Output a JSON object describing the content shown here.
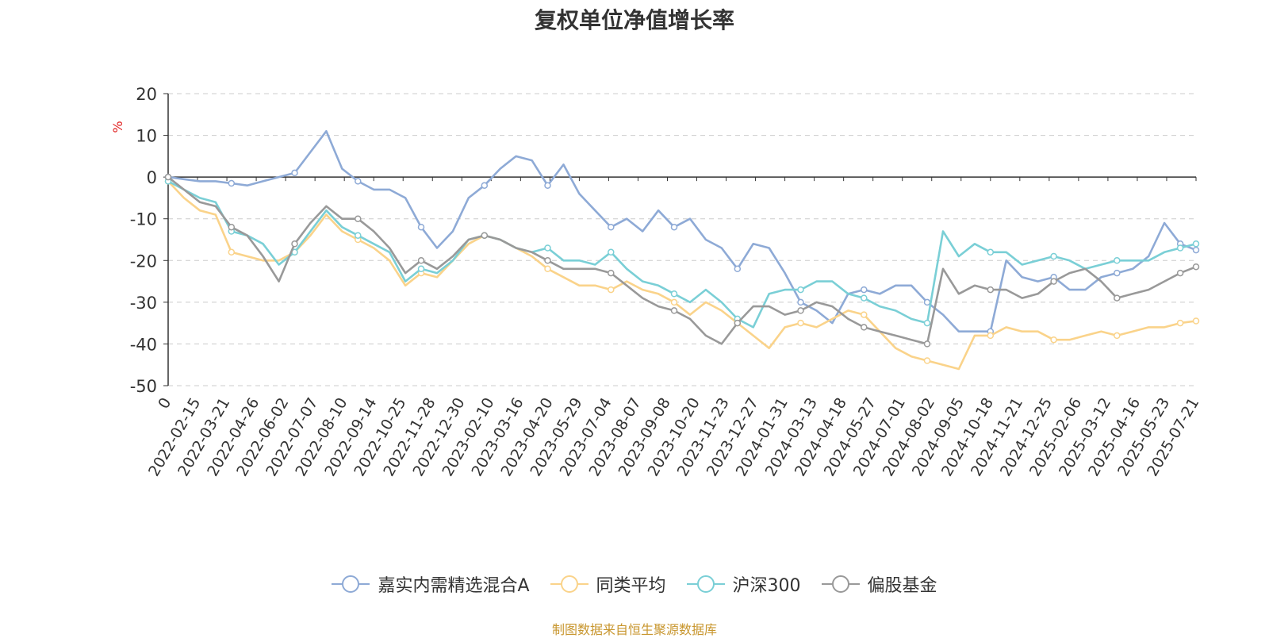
{
  "title": "复权单位净值增长率",
  "source_note": "制图数据来自恒生聚源数据库",
  "chart_data": {
    "type": "line",
    "title": "复权单位净值增长率",
    "ylabel": "%",
    "ylim": [
      -50,
      20
    ],
    "yticks": [
      20,
      10,
      0,
      -10,
      -20,
      -30,
      -40,
      -50
    ],
    "grid": true,
    "legend_position": "bottom",
    "x_tick_labels": [
      "0",
      "2022-02-15",
      "2022-03-21",
      "2022-04-26",
      "2022-06-02",
      "2022-07-07",
      "2022-08-10",
      "2022-09-14",
      "2022-10-25",
      "2022-11-28",
      "2022-12-30",
      "2023-02-10",
      "2023-03-16",
      "2023-04-20",
      "2023-05-29",
      "2023-07-04",
      "2023-08-07",
      "2023-09-08",
      "2023-10-20",
      "2023-11-23",
      "2023-12-27",
      "2024-01-31",
      "2024-03-13",
      "2024-04-18",
      "2024-05-27",
      "2024-07-01",
      "2024-08-02",
      "2024-09-05",
      "2024-10-18",
      "2024-11-21",
      "2024-12-25",
      "2025-02-06",
      "2025-03-12",
      "2025-04-16",
      "2025-05-23",
      "2025-07-21"
    ],
    "series": [
      {
        "name": "嘉实内需精选混合A",
        "color": "#8eaad6",
        "values": [
          0,
          -0.5,
          -1,
          -1,
          -1.5,
          -2,
          -1,
          0,
          1,
          6,
          11,
          2,
          -1,
          -3,
          -3,
          -5,
          -12,
          -17,
          -13,
          -5,
          -2,
          2,
          5,
          4,
          -2,
          3,
          -4,
          -8,
          -12,
          -10,
          -13,
          -8,
          -12,
          -10,
          -15,
          -17,
          -22,
          -16,
          -17,
          -23,
          -30,
          -32,
          -35,
          -28,
          -27,
          -28,
          -26,
          -26,
          -30,
          -33,
          -37,
          -37,
          -37,
          -20,
          -24,
          -25,
          -24,
          -27,
          -27,
          -24,
          -23,
          -22,
          -19,
          -11,
          -16,
          -17.5
        ]
      },
      {
        "name": "同类平均",
        "color": "#fad38a",
        "values": [
          -1,
          -5,
          -8,
          -9,
          -18,
          -19,
          -20,
          -20,
          -18,
          -14,
          -9,
          -13,
          -15,
          -17,
          -20,
          -26,
          -23,
          -24,
          -20,
          -16,
          -14,
          -15,
          -17,
          -19,
          -22,
          -24,
          -26,
          -26,
          -27,
          -25,
          -27,
          -28,
          -30,
          -33,
          -30,
          -32,
          -35,
          -38,
          -41,
          -36,
          -35,
          -36,
          -34,
          -32,
          -33,
          -37,
          -41,
          -43,
          -44,
          -45,
          -46,
          -38,
          -38,
          -36,
          -37,
          -37,
          -39,
          -39,
          -38,
          -37,
          -38,
          -37,
          -36,
          -36,
          -35,
          -34.5
        ]
      },
      {
        "name": "沪深300",
        "color": "#7acfd6",
        "values": [
          -1,
          -3,
          -5,
          -6,
          -13,
          -14,
          -16,
          -21,
          -18,
          -13,
          -8,
          -12,
          -14,
          -16,
          -18,
          -25,
          -22,
          -23,
          -20,
          -15,
          -14,
          -15,
          -17,
          -18,
          -17,
          -20,
          -20,
          -21,
          -18,
          -22,
          -25,
          -26,
          -28,
          -30,
          -27,
          -30,
          -34,
          -36,
          -28,
          -27,
          -27,
          -25,
          -25,
          -28,
          -29,
          -31,
          -32,
          -34,
          -35,
          -13,
          -19,
          -16,
          -18,
          -18,
          -21,
          -20,
          -19,
          -20,
          -22,
          -21,
          -20,
          -20,
          -20,
          -18,
          -17,
          -16
        ]
      },
      {
        "name": "偏股基金",
        "color": "#999999",
        "values": [
          0,
          -3,
          -6,
          -7,
          -12,
          -14,
          -19,
          -25,
          -16,
          -11,
          -7,
          -10,
          -10,
          -13,
          -17,
          -23,
          -20,
          -22,
          -19,
          -15,
          -14,
          -15,
          -17,
          -18,
          -20,
          -22,
          -22,
          -22,
          -23,
          -26,
          -29,
          -31,
          -32,
          -34,
          -38,
          -40,
          -35,
          -31,
          -31,
          -33,
          -32,
          -30,
          -31,
          -34,
          -36,
          -37,
          -38,
          -39,
          -40,
          -22,
          -28,
          -26,
          -27,
          -27,
          -29,
          -28,
          -25,
          -23,
          -22,
          -25,
          -29,
          -28,
          -27,
          -25,
          -23,
          -21.5
        ]
      }
    ]
  }
}
